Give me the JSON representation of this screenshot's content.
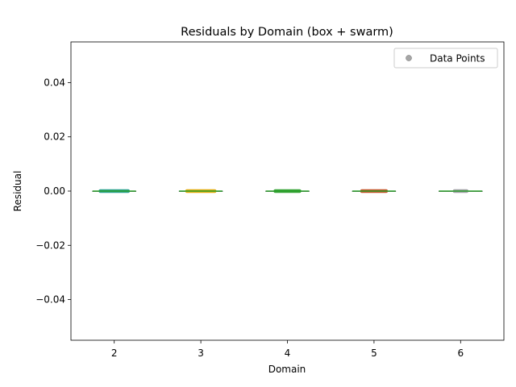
{
  "chart_data": {
    "type": "box",
    "title": "Residuals by Domain (box + swarm)",
    "xlabel": "Domain",
    "ylabel": "Residual",
    "categories": [
      "2",
      "3",
      "4",
      "5",
      "6"
    ],
    "ylim": [
      -0.055,
      0.055
    ],
    "yticks": [
      -0.04,
      -0.02,
      0.0,
      0.02,
      0.04
    ],
    "ytick_labels": [
      "−0.04",
      "−0.02",
      "0.00",
      "0.02",
      "0.04"
    ],
    "grid": false,
    "legend": {
      "position": "top-right",
      "entries": [
        "Data Points"
      ]
    },
    "median_color": "#2ca02c",
    "point_color": "#808080",
    "groups": [
      {
        "category": "2",
        "median": 0.0,
        "q1": 0.0,
        "q3": 0.0,
        "whisker_low": 0.0,
        "whisker_high": 0.0,
        "color": "#1f9e89",
        "spread": 0.16
      },
      {
        "category": "3",
        "median": 0.0,
        "q1": 0.0,
        "q3": 0.0,
        "whisker_low": 0.0,
        "whisker_high": 0.0,
        "color": "#e0a800",
        "spread": 0.16
      },
      {
        "category": "4",
        "median": 0.0,
        "q1": 0.0,
        "q3": 0.0,
        "whisker_low": 0.0,
        "whisker_high": 0.0,
        "color": "#2ca02c",
        "spread": 0.14
      },
      {
        "category": "5",
        "median": 0.0,
        "q1": 0.0,
        "q3": 0.0,
        "whisker_low": 0.0,
        "whisker_high": 0.0,
        "color": "#c04a1c",
        "spread": 0.14
      },
      {
        "category": "6",
        "median": 0.0,
        "q1": 0.0,
        "q3": 0.0,
        "whisker_low": 0.0,
        "whisker_high": 0.0,
        "color": "#9a9aa0",
        "spread": 0.07
      }
    ]
  }
}
